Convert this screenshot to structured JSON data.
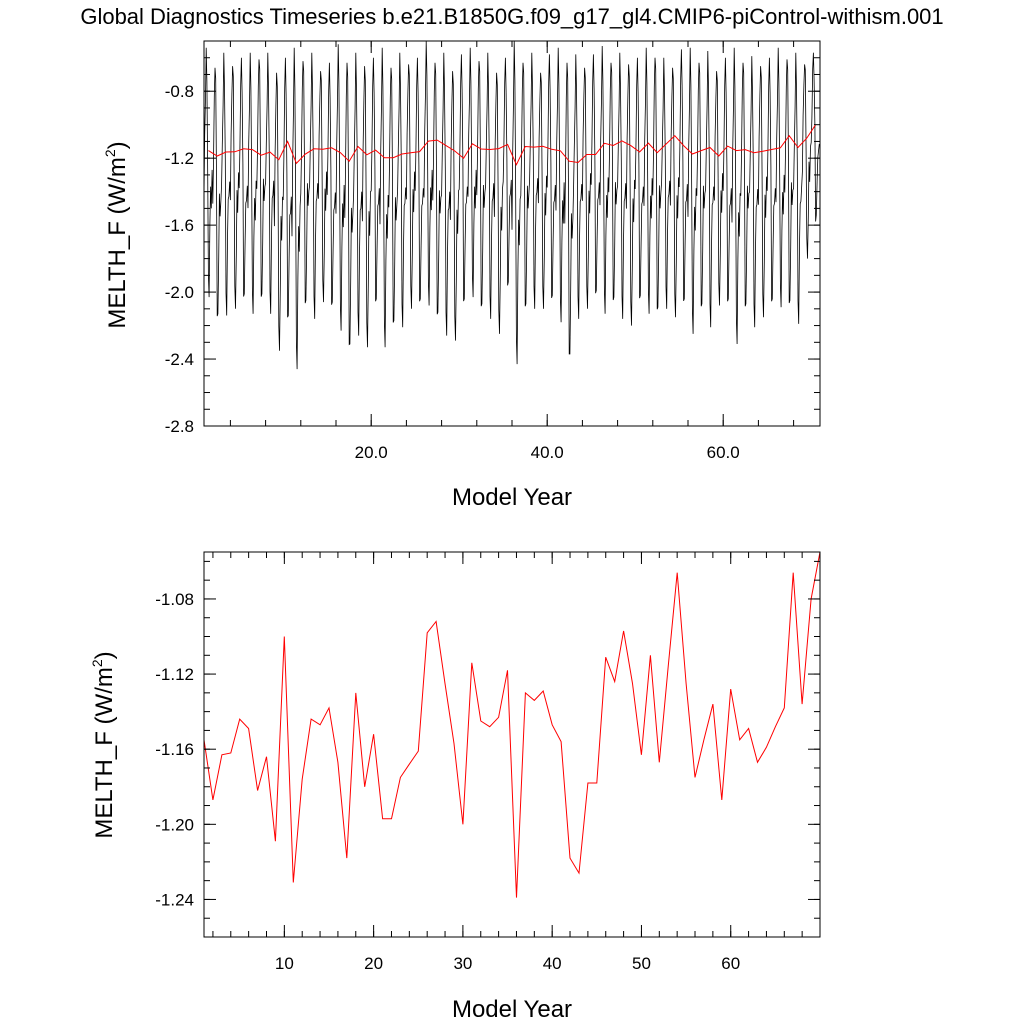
{
  "title": "Global Diagnostics Timeseries b.e21.B1850G.f09_g17_gl4.CMIP6-piControl-withism.001",
  "chart_data": [
    {
      "type": "line",
      "ylabel_main": "MELTH_F (W/m",
      "ylabel_sup": "2",
      "ylabel_close": ")",
      "xlabel": "Model Year",
      "xlim": [
        1,
        71
      ],
      "ylim": [
        -2.8,
        -0.5
      ],
      "yticks": [
        -0.8,
        -1.2,
        -1.6,
        -2.0,
        -2.4,
        -2.8
      ],
      "ytick_labels": [
        "-0.8",
        "-1.2",
        "-1.6",
        "-2.0",
        "-2.4",
        "-2.8"
      ],
      "xticks": [
        20,
        40,
        60
      ],
      "xtick_labels": [
        "20.0",
        "40.0",
        "60.0"
      ],
      "series": [
        {
          "color": "#000000",
          "kind": "monthly",
          "troughs": [
            -2.0,
            -2.16,
            -2.08,
            -2.1,
            -2.07,
            -2.1,
            -2.04,
            -2.07,
            -2.35,
            -2.2,
            -2.43,
            -2.08,
            -2.1,
            -2.06,
            -2.12,
            -2.2,
            -2.34,
            -2.2,
            -2.33,
            -2.1,
            -2.3,
            -2.2,
            -2.15,
            -2.1,
            -2.1,
            -2.05,
            -2.15,
            -2.2,
            -2.29,
            -2.1,
            -2.0,
            -2.1,
            -2.1,
            -2.25,
            -2.0,
            -2.4,
            -2.1,
            -2.04,
            -2.1,
            -2.08,
            -2.15,
            -2.4,
            -2.1,
            -2.1,
            -2.05,
            -2.1,
            -2.06,
            -2.1,
            -2.2,
            -2.08,
            -2.1,
            -2.12,
            -2.04,
            -2.15,
            -2.1,
            -2.22,
            -2.1,
            -2.15,
            -2.08,
            -2.1,
            -2.28,
            -2.1,
            -2.15,
            -2.15,
            -2.1,
            -2.06,
            -2.08,
            -2.13,
            -1.8,
            -1.6
          ],
          "peaks": [
            -0.6,
            -0.63,
            -0.6,
            -0.59,
            -0.6,
            -0.63,
            -0.58,
            -0.6,
            -0.63,
            -0.6,
            -0.6,
            -0.59,
            -0.6,
            -0.62,
            -0.63,
            -0.58,
            -0.6,
            -0.6,
            -0.59,
            -0.6,
            -0.6,
            -0.63,
            -0.6,
            -0.58,
            -0.6,
            -0.55,
            -0.6,
            -0.6,
            -0.62,
            -0.58,
            -0.6,
            -0.59,
            -0.6,
            -0.63,
            -0.6,
            -0.55,
            -0.6,
            -0.6,
            -0.63,
            -0.58,
            -0.6,
            -0.6,
            -0.61,
            -0.6,
            -0.58,
            -0.59,
            -0.6,
            -0.6,
            -0.58,
            -0.6,
            -0.6,
            -0.57,
            -0.63,
            -0.6,
            -0.55,
            -0.6,
            -0.6,
            -0.59,
            -0.62,
            -0.6,
            -0.6,
            -0.6,
            -0.62,
            -0.59,
            -0.6,
            -0.6,
            -0.58,
            -0.6,
            -0.58,
            -0.57
          ]
        },
        {
          "color": "#ff0000",
          "kind": "annual"
        }
      ]
    },
    {
      "type": "line",
      "ylabel_main": "MELTH_F (W/m",
      "ylabel_sup": "2",
      "ylabel_close": ")",
      "xlabel": "Model Year",
      "xlim": [
        1,
        70
      ],
      "ylim": [
        -1.26,
        -1.055
      ],
      "yticks": [
        -1.08,
        -1.12,
        -1.16,
        -1.2,
        -1.24
      ],
      "ytick_labels": [
        "-1.08",
        "-1.12",
        "-1.16",
        "-1.20",
        "-1.24"
      ],
      "xticks": [
        10,
        20,
        30,
        40,
        50,
        60
      ],
      "xtick_labels": [
        "10",
        "20",
        "30",
        "40",
        "50",
        "60"
      ],
      "series": [
        {
          "color": "#ff0000",
          "x": [
            1,
            2,
            3,
            4,
            5,
            6,
            7,
            8,
            9,
            10,
            11,
            12,
            13,
            14,
            15,
            16,
            17,
            18,
            19,
            20,
            21,
            22,
            23,
            24,
            25,
            26,
            27,
            28,
            29,
            30,
            31,
            32,
            33,
            34,
            35,
            36,
            37,
            38,
            39,
            40,
            41,
            42,
            43,
            44,
            45,
            46,
            47,
            48,
            49,
            50,
            51,
            52,
            53,
            54,
            55,
            56,
            57,
            58,
            59,
            60,
            61,
            62,
            63,
            64,
            65,
            66,
            67,
            68,
            69,
            70
          ],
          "y": [
            -1.155,
            -1.187,
            -1.163,
            -1.162,
            -1.144,
            -1.149,
            -1.182,
            -1.164,
            -1.209,
            -1.1,
            -1.231,
            -1.176,
            -1.144,
            -1.147,
            -1.138,
            -1.167,
            -1.218,
            -1.13,
            -1.18,
            -1.152,
            -1.197,
            -1.197,
            -1.175,
            -1.168,
            -1.161,
            -1.098,
            -1.092,
            -1.125,
            -1.157,
            -1.2,
            -1.114,
            -1.145,
            -1.148,
            -1.143,
            -1.118,
            -1.239,
            -1.13,
            -1.134,
            -1.129,
            -1.147,
            -1.156,
            -1.218,
            -1.226,
            -1.178,
            -1.178,
            -1.111,
            -1.124,
            -1.097,
            -1.125,
            -1.163,
            -1.11,
            -1.167,
            -1.116,
            -1.066,
            -1.125,
            -1.175,
            -1.155,
            -1.136,
            -1.187,
            -1.128,
            -1.155,
            -1.149,
            -1.167,
            -1.159,
            -1.148,
            -1.138,
            -1.066,
            -1.136,
            -1.08,
            -1.0
          ]
        }
      ]
    }
  ]
}
